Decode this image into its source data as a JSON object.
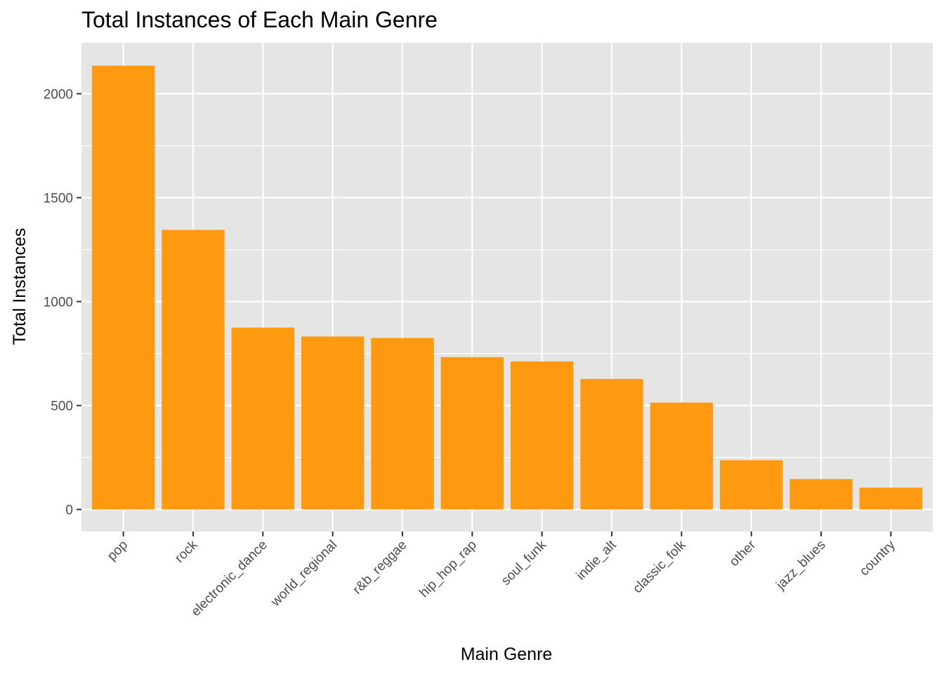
{
  "chart_data": {
    "type": "bar",
    "title": "Total Instances of Each Main Genre",
    "xlabel": "Main Genre",
    "ylabel": "Total Instances",
    "categories": [
      "pop",
      "rock",
      "electronic_dance",
      "world_regional",
      "r&b_reggae",
      "hip_hop_rap",
      "soul_funk",
      "indie_alt",
      "classic_folk",
      "other",
      "jazz_blues",
      "country"
    ],
    "values": [
      2135,
      1345,
      875,
      832,
      825,
      733,
      712,
      628,
      514,
      237,
      146,
      105
    ],
    "ylim": [
      -106,
      2245
    ],
    "yticks": [
      0,
      500,
      1000,
      1500,
      2000
    ],
    "yminor": [
      250,
      750,
      1250,
      1750
    ],
    "grid": true,
    "bar_color": "#FF990F",
    "panel_color": "#E5E5E5",
    "grid_color": "#FFFFFF",
    "tick_label_color": "#4D4D4D"
  }
}
